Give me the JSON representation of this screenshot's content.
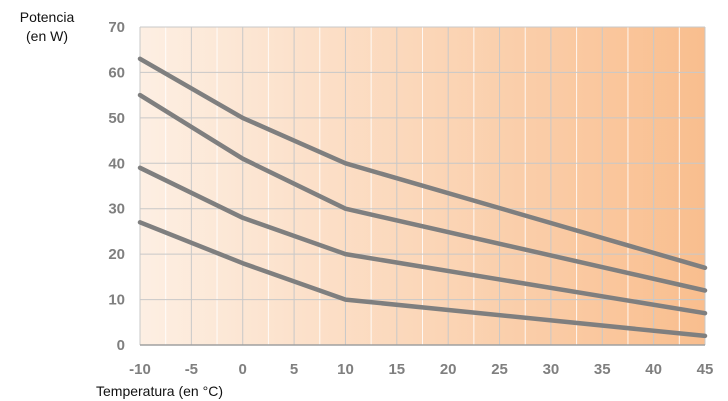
{
  "chart_data": {
    "type": "line",
    "title": "",
    "ylabel_line1": "Potencia",
    "ylabel_line2": "(en W)",
    "xlabel": "Temperatura (en °C)",
    "xlim": [
      -10,
      45
    ],
    "ylim": [
      0,
      70
    ],
    "x_ticks": [
      -10,
      -5,
      0,
      5,
      10,
      15,
      20,
      25,
      30,
      35,
      40,
      45
    ],
    "y_ticks": [
      0,
      10,
      20,
      30,
      40,
      50,
      60,
      70
    ],
    "grid": true,
    "background_gradient": [
      "#fdefe3",
      "#f9be8e"
    ],
    "line_color": "#7f7f7f",
    "series": [
      {
        "points": [
          [
            -10,
            63
          ],
          [
            0,
            50
          ],
          [
            10,
            40
          ],
          [
            45,
            17
          ]
        ]
      },
      {
        "points": [
          [
            -10,
            55
          ],
          [
            0,
            41
          ],
          [
            10,
            30
          ],
          [
            45,
            12
          ]
        ]
      },
      {
        "points": [
          [
            -10,
            39
          ],
          [
            0,
            28
          ],
          [
            10,
            20
          ],
          [
            45,
            7
          ]
        ]
      },
      {
        "points": [
          [
            -10,
            27
          ],
          [
            0,
            18
          ],
          [
            10,
            10
          ],
          [
            45,
            2
          ]
        ]
      }
    ]
  }
}
